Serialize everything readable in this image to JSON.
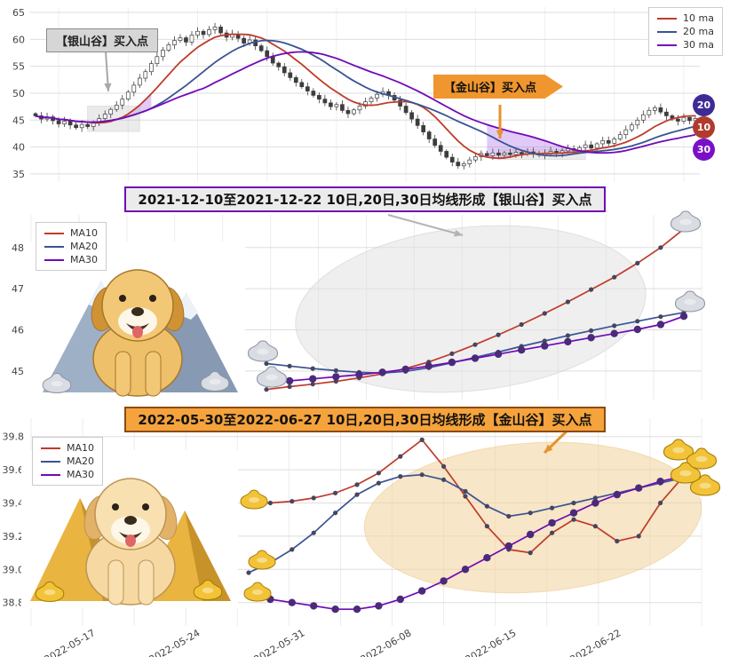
{
  "banners": {
    "silver": "2021-12-10至2021-12-22 10日,20日,30日均线形成【银山谷】买入点",
    "gold": "2022-05-30至2022-06-27 10日,20日,30日均线形成【金山谷】买入点"
  },
  "chart_data": [
    {
      "name": "daily-candlestick-with-moving-averages",
      "type": "candlestick",
      "ylim": [
        33.5,
        66
      ],
      "yticks": [
        35,
        40,
        45,
        50,
        55,
        60,
        65
      ],
      "legend": [
        {
          "label": "10 ma",
          "color": "#bf3b2b"
        },
        {
          "label": "20 ma",
          "color": "#3a5394"
        },
        {
          "label": "30 ma",
          "color": "#7209b7"
        }
      ],
      "ma_windows": [
        10,
        20,
        30
      ],
      "closes": [
        45.8,
        45.2,
        45.6,
        44.9,
        44.3,
        44.8,
        44.1,
        43.6,
        44.2,
        43.8,
        44.5,
        45.3,
        46.1,
        47.0,
        47.8,
        48.9,
        50.2,
        51.5,
        52.8,
        54.0,
        55.5,
        56.8,
        58.0,
        59.0,
        59.8,
        60.3,
        59.5,
        60.8,
        61.5,
        60.9,
        61.8,
        62.3,
        61.2,
        60.4,
        61.0,
        60.2,
        59.3,
        59.9,
        58.8,
        57.9,
        56.8,
        55.6,
        54.9,
        53.8,
        52.9,
        52.0,
        51.2,
        50.4,
        49.6,
        48.9,
        48.2,
        47.5,
        47.9,
        46.8,
        46.2,
        46.9,
        47.6,
        48.4,
        49.1,
        49.8,
        50.3,
        49.6,
        48.7,
        47.6,
        46.4,
        45.2,
        44.0,
        42.8,
        41.5,
        40.3,
        39.2,
        38.1,
        37.2,
        36.5,
        36.9,
        37.6,
        38.2,
        38.8,
        38.4,
        38.9,
        38.5,
        38.9,
        38.6,
        39.0,
        38.7,
        39.1,
        38.8,
        38.5,
        38.9,
        39.2,
        38.8,
        39.3,
        39.7,
        39.4,
        39.9,
        40.4,
        39.8,
        40.6,
        41.2,
        40.7,
        41.5,
        42.3,
        43.2,
        44.1,
        45.0,
        46.0,
        46.8,
        47.3,
        46.5,
        45.8,
        45.2,
        44.8,
        45.5,
        44.9,
        45.3
      ],
      "annotations": {
        "silver": "【银山谷】买入点",
        "gold": "【金山谷】买入点"
      },
      "badges": [
        {
          "label": "20",
          "color": "#3f2b96"
        },
        {
          "label": "10",
          "color": "#b03a2e"
        },
        {
          "label": "30",
          "color": "#7a0fc8"
        }
      ],
      "highlight_spans": [
        {
          "from": 8,
          "to": 20
        },
        {
          "from": 78,
          "to": 97
        }
      ],
      "highlight_boxes": [
        {
          "from": 9,
          "to": 18,
          "top": 47.6,
          "bottom": 42.9
        },
        {
          "from": 80,
          "to": 95,
          "top": 39.5,
          "bottom": 37.7
        }
      ],
      "colors": {
        "gold": "#e8912d",
        "gray": "#a8a8a8",
        "valley_fill": "#8a2be2"
      }
    },
    {
      "name": "silver-valley-ma-detail",
      "type": "line",
      "ylim": [
        44.35,
        48.75
      ],
      "yticks": [
        45,
        46,
        47,
        48
      ],
      "ydecimals": 0,
      "series": [
        {
          "name": "MA10",
          "color": "#bf3b2b",
          "dot_color": "#46465f",
          "dot_radius": 2.6,
          "values": [
            44.55,
            44.62,
            44.68,
            44.75,
            44.83,
            44.93,
            45.06,
            45.22,
            45.42,
            45.64,
            45.88,
            46.13,
            46.4,
            46.68,
            46.98,
            47.28,
            47.62,
            48.0,
            48.45
          ]
        },
        {
          "name": "MA20",
          "color": "#3a5394",
          "dot_color": "#46465f",
          "dot_radius": 2.6,
          "values": [
            45.18,
            45.12,
            45.06,
            45.01,
            44.97,
            44.95,
            44.99,
            45.08,
            45.2,
            45.33,
            45.46,
            45.6,
            45.73,
            45.86,
            45.98,
            46.1,
            46.21,
            46.32,
            46.42
          ]
        },
        {
          "name": "MA30",
          "color": "#7209b7",
          "dot_color": "#4b2a7b",
          "dot_radius": 4.2,
          "values": [
            44.72,
            44.76,
            44.81,
            44.86,
            44.91,
            44.97,
            45.04,
            45.12,
            45.21,
            45.31,
            45.41,
            45.51,
            45.61,
            45.71,
            45.81,
            45.91,
            46.01,
            46.13,
            46.33
          ]
        }
      ]
    },
    {
      "name": "gold-valley-ma-detail",
      "type": "line",
      "ylim": [
        38.67,
        39.9
      ],
      "yticks": [
        38.8,
        39.0,
        39.2,
        39.4,
        39.6,
        39.8
      ],
      "ydecimals": 1,
      "xlabels": [
        "2022-05-17",
        "2022-05-24",
        "2022-05-31",
        "2022-06-08",
        "2022-06-15",
        "2022-06-22"
      ],
      "series": [
        {
          "name": "MA10",
          "color": "#bf3b2b",
          "dot_color": "#46465f",
          "dot_radius": 2.6,
          "values": [
            39.4,
            39.4,
            39.41,
            39.43,
            39.46,
            39.51,
            39.58,
            39.68,
            39.78,
            39.62,
            39.44,
            39.26,
            39.12,
            39.1,
            39.22,
            39.3,
            39.26,
            39.17,
            39.2,
            39.4,
            39.55
          ]
        },
        {
          "name": "MA20",
          "color": "#3a5394",
          "dot_color": "#46465f",
          "dot_radius": 2.6,
          "values": [
            38.98,
            39.04,
            39.12,
            39.22,
            39.34,
            39.45,
            39.52,
            39.56,
            39.57,
            39.54,
            39.47,
            39.38,
            39.32,
            39.34,
            39.37,
            39.4,
            39.43,
            39.46,
            39.49,
            39.52,
            39.55
          ]
        },
        {
          "name": "MA30",
          "color": "#7209b7",
          "dot_color": "#4b2a7b",
          "dot_radius": 4.2,
          "values": [
            38.85,
            38.82,
            38.8,
            38.78,
            38.76,
            38.76,
            38.78,
            38.82,
            38.87,
            38.93,
            39.0,
            39.07,
            39.14,
            39.21,
            39.28,
            39.34,
            39.4,
            39.45,
            39.49,
            39.53,
            39.56
          ]
        }
      ]
    }
  ]
}
